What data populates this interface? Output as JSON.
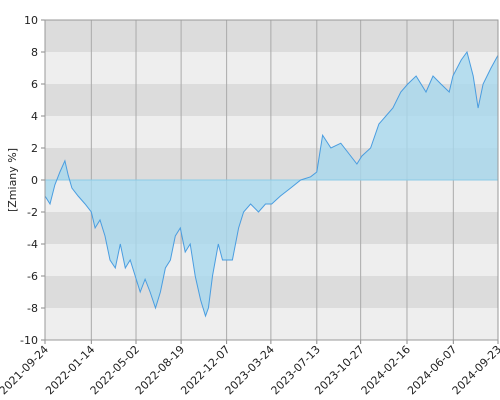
{
  "chart_data": {
    "type": "area",
    "ylabel": "[Zmiany %]",
    "x": [
      "2021-09-24",
      "2021-10-06",
      "2021-10-18",
      "2021-10-30",
      "2021-11-11",
      "2021-11-19",
      "2021-11-28",
      "2021-12-13",
      "2021-12-30",
      "2022-01-14",
      "2022-01-23",
      "2022-02-04",
      "2022-02-16",
      "2022-02-28",
      "2022-03-13",
      "2022-03-25",
      "2022-04-06",
      "2022-04-18",
      "2022-04-30",
      "2022-05-12",
      "2022-05-24",
      "2022-06-05",
      "2022-06-18",
      "2022-06-30",
      "2022-07-12",
      "2022-07-24",
      "2022-08-05",
      "2022-08-17",
      "2022-08-29",
      "2022-09-10",
      "2022-09-22",
      "2022-10-05",
      "2022-10-17",
      "2022-10-24",
      "2022-11-03",
      "2022-11-17",
      "2022-11-27",
      "2022-12-07",
      "2022-12-21",
      "2023-01-05",
      "2023-01-17",
      "2023-02-03",
      "2023-02-22",
      "2023-03-11",
      "2023-03-26",
      "2023-04-16",
      "2023-05-11",
      "2023-06-04",
      "2023-06-28",
      "2023-07-13",
      "2023-07-27",
      "2023-08-16",
      "2023-09-09",
      "2023-10-03",
      "2023-10-18",
      "2023-10-30",
      "2023-11-20",
      "2023-12-10",
      "2023-12-27",
      "2024-01-13",
      "2024-02-01",
      "2024-02-18",
      "2024-03-09",
      "2024-04-02",
      "2024-04-19",
      "2024-05-08",
      "2024-05-28",
      "2024-06-06",
      "2024-06-26",
      "2024-07-10",
      "2024-07-25",
      "2024-08-06",
      "2024-08-18",
      "2024-09-06",
      "2024-09-23"
    ],
    "series": [
      {
        "color": "#4a9de0",
        "fill": "#a8d8ee",
        "values": [
          -1,
          -1.5,
          -0.3,
          0.5,
          1.2,
          0.3,
          -0.5,
          -1,
          -1.5,
          -2,
          -3,
          -2.5,
          -3.5,
          -5,
          -5.5,
          -4,
          -5.5,
          -5,
          -6,
          -7,
          -6.2,
          -7,
          -8,
          -7,
          -5.5,
          -5,
          -3.5,
          -3,
          -4.5,
          -4,
          -6,
          -7.5,
          -8.5,
          -8,
          -6,
          -4,
          -5,
          -5,
          -5,
          -3,
          -2,
          -1.5,
          -2,
          -1.5,
          -1.5,
          -1,
          -0.5,
          0,
          0.2,
          0.5,
          2.8,
          2,
          2.3,
          1.5,
          1,
          1.5,
          2,
          3.5,
          4,
          4.5,
          5.5,
          6,
          6.5,
          5.5,
          6.5,
          6,
          5.5,
          6.5,
          7.5,
          8,
          6.5,
          4.5,
          6,
          7,
          7.8
        ]
      }
    ],
    "xlim": [
      "2021-09-24",
      "2024-09-23"
    ],
    "xticks": [
      "2021-09-24",
      "2022-01-14",
      "2022-05-02",
      "2022-08-19",
      "2022-12-07",
      "2023-03-24",
      "2023-07-13",
      "2023-10-27",
      "2024-02-16",
      "2024-06-07",
      "2024-09-23"
    ],
    "ylim": [
      -10,
      10
    ],
    "yticks": [
      -10,
      -8,
      -6,
      -4,
      -2,
      0,
      2,
      4,
      6,
      8,
      10
    ],
    "grid": true
  }
}
